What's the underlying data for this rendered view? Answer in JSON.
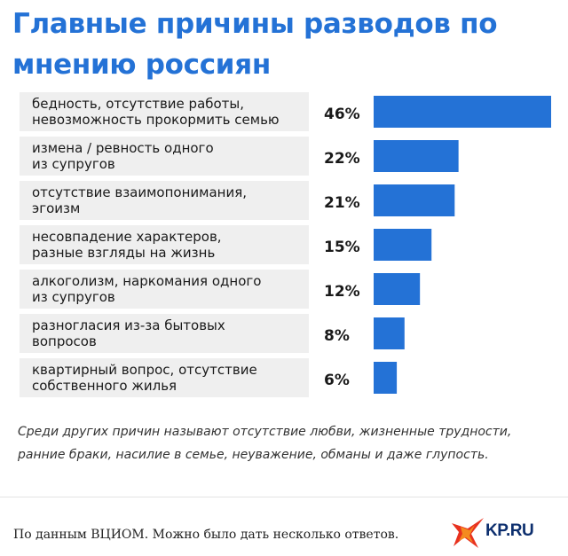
{
  "title": "Главные причины разводов по мнению россиян",
  "chart_data": {
    "type": "bar",
    "orientation": "horizontal",
    "categories": [
      [
        "бедность, отсутствие работы,",
        "невозможность прокормить семью"
      ],
      [
        "измена / ревность одного",
        "из супругов"
      ],
      [
        "отсутствие взаимопонимания,",
        "эгоизм"
      ],
      [
        "несовпадение характеров,",
        "разные взгляды на жизнь"
      ],
      [
        "алкоголизм, наркомания одного",
        "из супругов"
      ],
      [
        "разногласия из-за бытовых",
        "вопросов"
      ],
      [
        "квартирный вопрос, отсутствие",
        "собственного жилья"
      ]
    ],
    "values": [
      46,
      22,
      21,
      15,
      12,
      8,
      6
    ],
    "value_labels": [
      "46%",
      "22%",
      "21%",
      "15%",
      "12%",
      "8%",
      "6%"
    ],
    "bar_color": "#2472d6",
    "label_box_color": "#efefef",
    "grid": false,
    "legend": false
  },
  "note": "Среди других причин называют отсутствие любви, жизненные трудности, ранние браки, насилие в семье, неуважение, обманы и даже глупость.",
  "source": "По данным ВЦИОМ. Можно было дать несколько ответов.",
  "logo": {
    "text": "KP.RU",
    "colors": {
      "text": "#0d2f6e",
      "red": "#e8311f",
      "orange": "#f48b1f"
    }
  }
}
